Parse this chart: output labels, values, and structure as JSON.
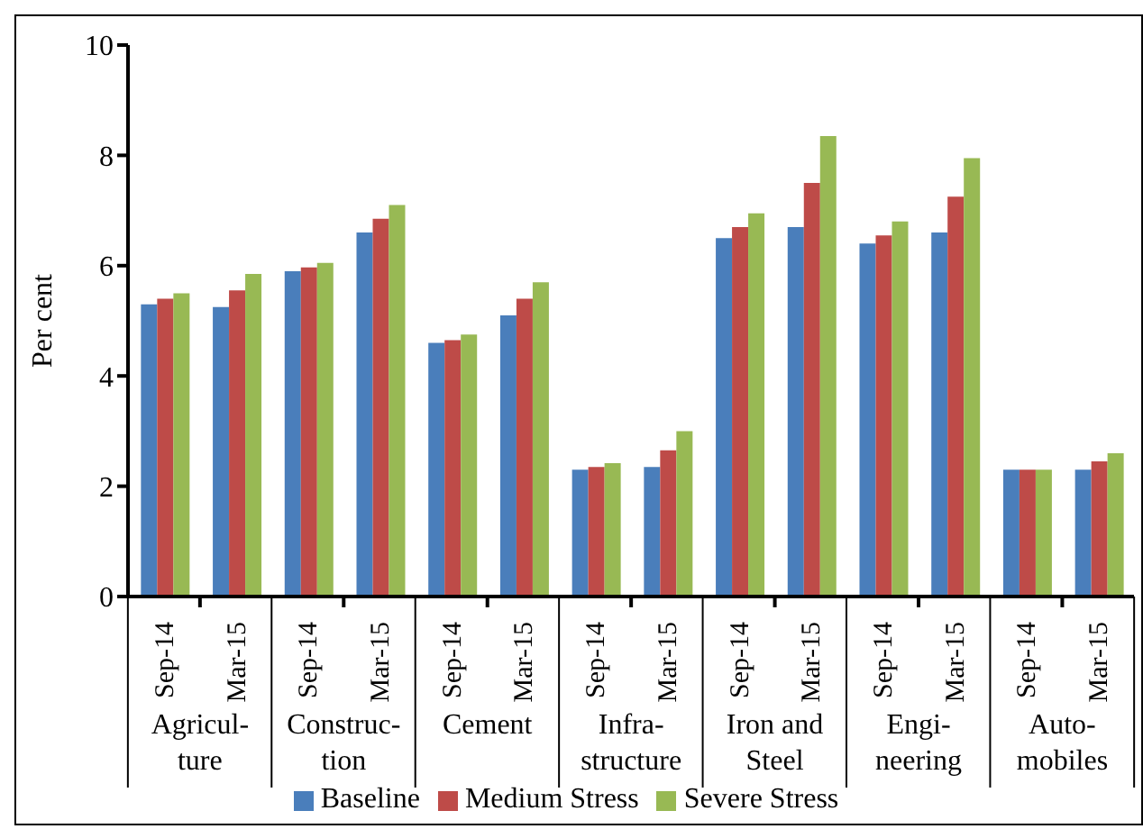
{
  "chart_data": {
    "type": "bar",
    "ylabel": "Per cent",
    "categories": [
      "Sep-14",
      "Mar-15",
      "Sep-14",
      "Mar-15",
      "Sep-14",
      "Mar-15",
      "Sep-14",
      "Mar-15",
      "Sep-14",
      "Mar-15",
      "Sep-14",
      "Mar-15",
      "Sep-14",
      "Mar-15"
    ],
    "annotations": [
      "Agricul-\nture",
      "Construc-\ntion",
      "Cement",
      "Infra-\nstructure",
      "Iron and\nSteel",
      "Engi-\nneering",
      "Auto-\nmobiles"
    ],
    "series": [
      {
        "name": "Baseline",
        "color": "#4a7ebb",
        "values": [
          5.3,
          5.25,
          5.9,
          6.6,
          4.6,
          5.1,
          2.3,
          2.35,
          6.5,
          6.7,
          6.4,
          6.6,
          2.3,
          2.3
        ]
      },
      {
        "name": "Medium Stress",
        "color": "#be4b48",
        "values": [
          5.4,
          5.55,
          5.97,
          6.85,
          4.65,
          5.4,
          2.35,
          2.65,
          6.7,
          7.5,
          6.55,
          7.25,
          2.3,
          2.45
        ]
      },
      {
        "name": "Severe Stress",
        "color": "#98b954",
        "values": [
          5.5,
          5.85,
          6.05,
          7.1,
          4.75,
          5.7,
          2.42,
          3.0,
          6.95,
          8.35,
          6.8,
          7.95,
          2.3,
          2.6
        ]
      }
    ],
    "ylim": [
      0,
      10
    ],
    "yticks": [
      0,
      2,
      4,
      6,
      8,
      10
    ],
    "legend": "bottom"
  }
}
